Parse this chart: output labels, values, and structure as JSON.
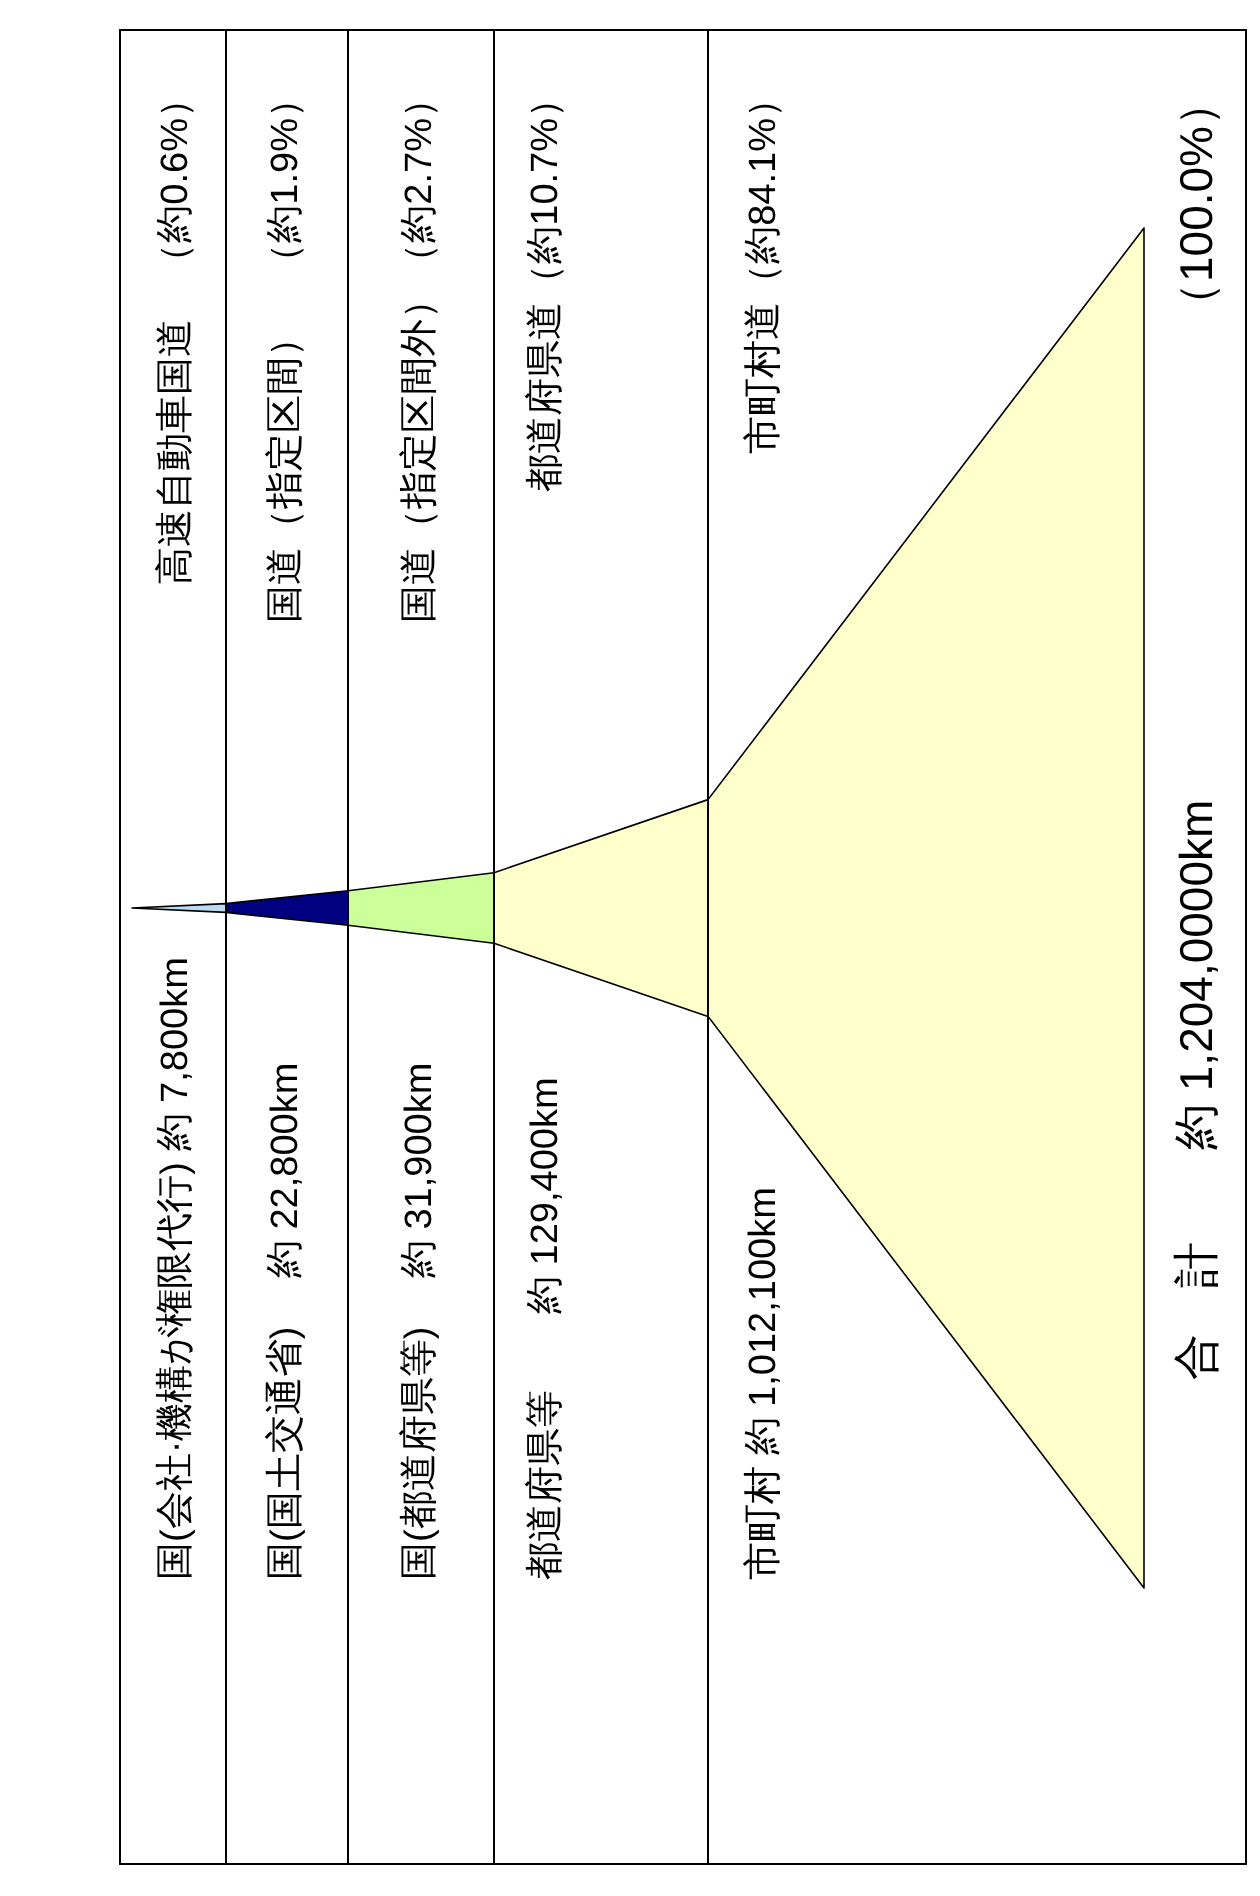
{
  "chart_data": {
    "type": "other",
    "categories": [
      "高速自動車国道　（約0.6%）",
      "国道（指定区間）　（約1.9%）",
      "国道（指定区間外）（約2.7%）",
      "都道府県道（約10.7%）",
      "市町村道（約84.1%）"
    ],
    "values": [
      7800,
      22800,
      31900,
      129400,
      1012100
    ],
    "value_labels": [
      "国(会社·機構が権限代行) 約 7,800km",
      "国(国土交通省)　 約 22,800km",
      "国(都道府県等)　 約 31,900km",
      "都道府県等　　約 129,400km",
      "市町村  約 1,012,100km"
    ],
    "colors": [
      "#bcdcf4",
      "#000080",
      "#ccff99",
      "#ffffcc",
      "#ffffcc"
    ],
    "annotations": [
      "合　計　　約 1,204,0000km",
      "（100.0%）"
    ]
  }
}
